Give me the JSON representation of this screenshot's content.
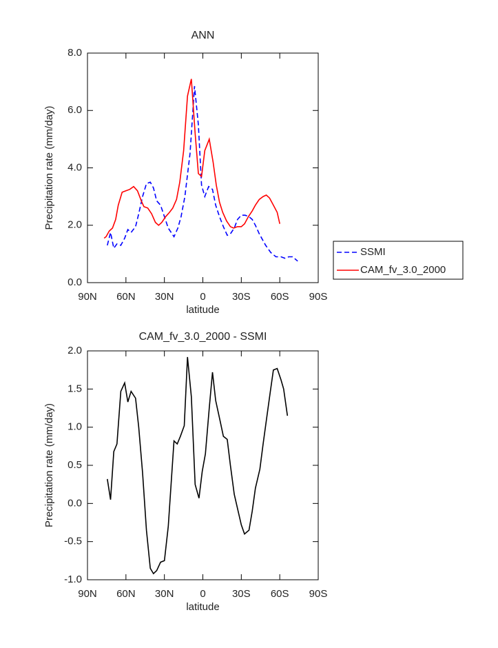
{
  "chart_data": [
    {
      "type": "line",
      "title": "ANN",
      "xlabel": "latitude",
      "ylabel": "Precipitation rate (mm/day)",
      "xlim": [
        90,
        -90
      ],
      "ylim": [
        0,
        8
      ],
      "xticks": [
        {
          "value": 90,
          "label": "90N"
        },
        {
          "value": 60,
          "label": "60N"
        },
        {
          "value": 30,
          "label": "30N"
        },
        0,
        {
          "value": -30,
          "label": "30S"
        },
        {
          "value": -60,
          "label": "60S"
        },
        {
          "value": -90,
          "label": "90S"
        }
      ],
      "yticks": [
        {
          "value": 0,
          "label": "0.0"
        },
        {
          "value": 2,
          "label": "2.0"
        },
        {
          "value": 4,
          "label": "4.0"
        },
        {
          "value": 6,
          "label": "6.0"
        },
        {
          "value": 8,
          "label": "8.0"
        }
      ],
      "legend": "right",
      "series": [
        {
          "name": "SSMI",
          "color": "#0000ff",
          "linestyle": "dashed",
          "x": [
            74.5,
            72,
            69.5,
            67,
            64,
            61,
            58.5,
            56,
            52.5,
            50,
            47,
            44,
            41,
            38.5,
            36,
            33,
            30,
            27,
            22.5,
            19.5,
            17,
            14,
            10,
            6.5,
            3.5,
            1,
            -1.5,
            -4.5,
            -7.5,
            -10,
            -13,
            -16,
            -19,
            -21.5,
            -24.5,
            -27,
            -30,
            -33,
            -36,
            -38.5,
            -41,
            -44,
            -49,
            -53,
            -57,
            -61,
            -64,
            -67,
            -70,
            -74
          ],
          "values": [
            1.3,
            1.75,
            1.2,
            1.35,
            1.3,
            1.55,
            1.85,
            1.75,
            1.95,
            2.4,
            3.0,
            3.45,
            3.5,
            3.3,
            2.85,
            2.7,
            2.3,
            1.9,
            1.6,
            1.9,
            2.3,
            3.0,
            4.5,
            6.85,
            5.5,
            3.4,
            3.0,
            3.35,
            3.25,
            2.7,
            2.3,
            1.95,
            1.65,
            1.7,
            1.9,
            2.2,
            2.35,
            2.35,
            2.3,
            2.2,
            2.0,
            1.7,
            1.3,
            1.05,
            0.9,
            0.9,
            0.85,
            0.9,
            0.9,
            0.75
          ]
        },
        {
          "name": "CAM_fv_3.0_2000",
          "color": "#ff0000",
          "linestyle": "solid",
          "x": [
            77,
            75.5,
            73,
            70.5,
            68,
            66,
            63,
            60,
            57,
            54,
            51,
            48,
            46,
            43,
            40,
            37,
            34.5,
            32,
            29,
            26,
            23.5,
            20.5,
            18,
            15,
            12,
            9,
            6,
            3.5,
            1,
            -1.5,
            -5,
            -8,
            -10.5,
            -13,
            -15.5,
            -18.5,
            -21.5,
            -24,
            -27,
            -30,
            -32.5,
            -35.5,
            -38.5,
            -41,
            -44,
            -47,
            -49.5,
            -52,
            -55,
            -58,
            -60
          ],
          "values": [
            1.55,
            1.6,
            1.8,
            1.9,
            2.2,
            2.7,
            3.15,
            3.2,
            3.25,
            3.35,
            3.2,
            2.85,
            2.65,
            2.6,
            2.4,
            2.1,
            2.0,
            2.1,
            2.3,
            2.45,
            2.6,
            2.9,
            3.5,
            4.6,
            6.5,
            7.1,
            5.2,
            3.8,
            3.7,
            4.6,
            5.0,
            4.2,
            3.4,
            2.8,
            2.45,
            2.15,
            1.95,
            1.9,
            1.95,
            1.95,
            2.05,
            2.3,
            2.5,
            2.7,
            2.9,
            3.0,
            3.05,
            2.95,
            2.7,
            2.45,
            2.05
          ]
        }
      ]
    },
    {
      "type": "line",
      "title": "CAM_fv_3.0_2000 - SSMI",
      "xlabel": "latitude",
      "ylabel": "Precipitation rate (mm/day)",
      "xlim": [
        90,
        -90
      ],
      "ylim": [
        -1,
        2
      ],
      "xticks": [
        {
          "value": 90,
          "label": "90N"
        },
        {
          "value": 60,
          "label": "60N"
        },
        {
          "value": 30,
          "label": "30N"
        },
        0,
        {
          "value": -30,
          "label": "30S"
        },
        {
          "value": -60,
          "label": "60S"
        },
        {
          "value": -90,
          "label": "90S"
        }
      ],
      "yticks": [
        {
          "value": -1,
          "label": "-1.0"
        },
        {
          "value": -0.5,
          "label": "-0.5"
        },
        {
          "value": 0,
          "label": "0.0"
        },
        {
          "value": 0.5,
          "label": "0.5"
        },
        {
          "value": 1,
          "label": "1.0"
        },
        {
          "value": 1.5,
          "label": "1.5"
        },
        {
          "value": 2,
          "label": "2.0"
        }
      ],
      "series": [
        {
          "color": "#000000",
          "linestyle": "solid",
          "x": [
            74.5,
            72,
            69.5,
            67,
            64,
            61,
            58.5,
            56,
            52.5,
            50,
            47,
            44,
            41,
            38.5,
            36,
            33,
            30,
            27,
            22.5,
            20,
            17.5,
            14.5,
            12,
            9,
            6,
            3,
            0.5,
            -2,
            -5,
            -7.5,
            -10,
            -13.5,
            -16,
            -19,
            -21.5,
            -24.5,
            -27.5,
            -30,
            -32.5,
            -36,
            -38.5,
            -41,
            -44.5,
            -47,
            -50,
            -52.5,
            -55,
            -58,
            -61,
            -63,
            -66
          ],
          "values": [
            0.32,
            0.05,
            0.68,
            0.78,
            1.47,
            1.58,
            1.33,
            1.47,
            1.38,
            1.0,
            0.4,
            -0.35,
            -0.85,
            -0.92,
            -0.88,
            -0.77,
            -0.75,
            -0.3,
            0.82,
            0.78,
            0.88,
            1.02,
            1.92,
            1.4,
            0.25,
            0.07,
            0.42,
            0.65,
            1.25,
            1.72,
            1.35,
            1.08,
            0.88,
            0.84,
            0.5,
            0.12,
            -0.1,
            -0.28,
            -0.4,
            -0.35,
            -0.1,
            0.2,
            0.45,
            0.78,
            1.15,
            1.45,
            1.75,
            1.77,
            1.62,
            1.5,
            1.15
          ]
        }
      ]
    }
  ]
}
